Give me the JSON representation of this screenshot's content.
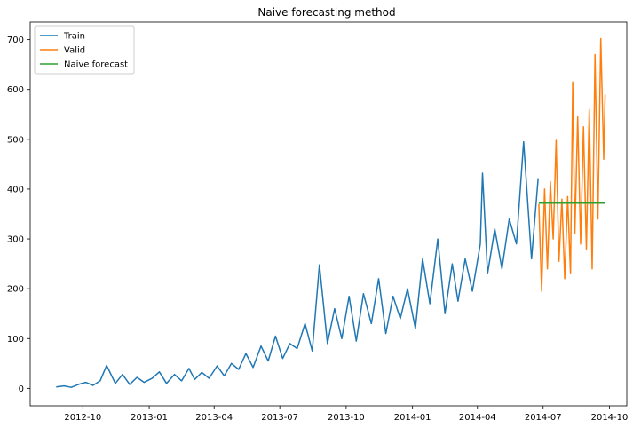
{
  "chart_data": {
    "type": "line",
    "title": "Naive forecasting method",
    "xlabel": "",
    "ylabel": "",
    "x_tick_labels": [
      "2012-10",
      "2013-01",
      "2013-04",
      "2013-07",
      "2013-10",
      "2014-01",
      "2014-04",
      "2014-07",
      "2014-10"
    ],
    "y_ticks": [
      0,
      100,
      200,
      300,
      400,
      500,
      600,
      700
    ],
    "xlim": [
      "2012-07-20",
      "2014-10-25"
    ],
    "ylim": [
      -35,
      735
    ],
    "grid": false,
    "legend_position": "top-left",
    "series": [
      {
        "name": "Train",
        "color": "#1f77b4",
        "x": [
          "2012-08-25",
          "2012-09-05",
          "2012-09-15",
          "2012-09-25",
          "2012-10-05",
          "2012-10-15",
          "2012-10-25",
          "2012-11-03",
          "2012-11-15",
          "2012-11-25",
          "2012-12-05",
          "2012-12-15",
          "2012-12-25",
          "2013-01-05",
          "2013-01-15",
          "2013-01-25",
          "2013-02-05",
          "2013-02-15",
          "2013-02-25",
          "2013-03-05",
          "2013-03-15",
          "2013-03-25",
          "2013-04-05",
          "2013-04-15",
          "2013-04-25",
          "2013-05-05",
          "2013-05-15",
          "2013-05-25",
          "2013-06-05",
          "2013-06-15",
          "2013-06-25",
          "2013-07-05",
          "2013-07-15",
          "2013-07-25",
          "2013-08-05",
          "2013-08-15",
          "2013-08-25",
          "2013-09-05",
          "2013-09-15",
          "2013-09-25",
          "2013-10-05",
          "2013-10-15",
          "2013-10-25",
          "2013-11-05",
          "2013-11-15",
          "2013-11-25",
          "2013-12-05",
          "2013-12-15",
          "2013-12-25",
          "2014-01-05",
          "2014-01-15",
          "2014-01-25",
          "2014-02-05",
          "2014-02-15",
          "2014-02-25",
          "2014-03-05",
          "2014-03-15",
          "2014-03-25",
          "2014-04-05",
          "2014-04-08",
          "2014-04-15",
          "2014-04-25",
          "2014-05-05",
          "2014-05-15",
          "2014-05-25",
          "2014-06-04",
          "2014-06-15",
          "2014-06-24"
        ],
        "y": [
          3,
          5,
          2,
          8,
          12,
          6,
          15,
          46,
          10,
          28,
          8,
          22,
          12,
          20,
          33,
          10,
          28,
          15,
          40,
          18,
          32,
          20,
          45,
          25,
          50,
          38,
          70,
          42,
          85,
          55,
          105,
          60,
          90,
          80,
          130,
          75,
          248,
          90,
          160,
          100,
          185,
          95,
          190,
          130,
          220,
          110,
          185,
          140,
          200,
          120,
          260,
          170,
          300,
          150,
          250,
          175,
          260,
          195,
          290,
          432,
          230,
          320,
          240,
          340,
          290,
          495,
          260,
          420
        ]
      },
      {
        "name": "Valid",
        "color": "#ff7f0e",
        "x": [
          "2014-06-25",
          "2014-06-29",
          "2014-07-03",
          "2014-07-07",
          "2014-07-11",
          "2014-07-15",
          "2014-07-19",
          "2014-07-23",
          "2014-07-27",
          "2014-07-31",
          "2014-08-04",
          "2014-08-08",
          "2014-08-11",
          "2014-08-14",
          "2014-08-18",
          "2014-08-22",
          "2014-08-26",
          "2014-08-30",
          "2014-09-03",
          "2014-09-07",
          "2014-09-11",
          "2014-09-15",
          "2014-09-19",
          "2014-09-23",
          "2014-09-25"
        ],
        "y": [
          370,
          195,
          400,
          240,
          415,
          300,
          498,
          255,
          380,
          220,
          385,
          230,
          615,
          310,
          545,
          290,
          525,
          280,
          560,
          240,
          670,
          340,
          702,
          460,
          590
        ]
      },
      {
        "name": "Naive forecast",
        "color": "#2ca02c",
        "x": [
          "2014-06-25",
          "2014-09-25"
        ],
        "y": [
          372,
          372
        ]
      }
    ]
  }
}
